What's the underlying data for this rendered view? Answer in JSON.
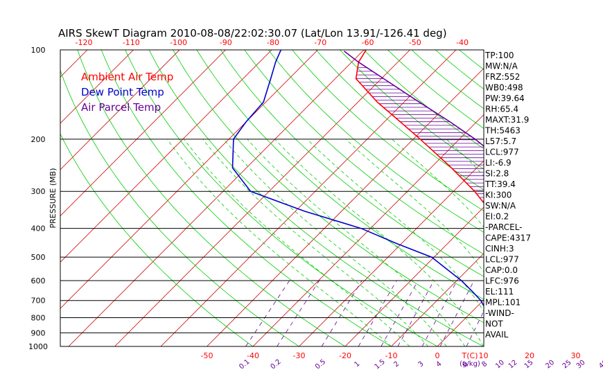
{
  "chart_data": {
    "type": "line",
    "title": "AIRS SkewT Diagram 2010-08-08/22:02:30.07 (Lat/Lon 13.91/-126.41 deg)",
    "ylabel": "PRESSURE (MB)",
    "y_scale": "log",
    "ylim": [
      1000,
      100
    ],
    "xlim_bottom_temp_c": [
      -50,
      40
    ],
    "pressure_ticks": [
      "100",
      "200",
      "300",
      "400",
      "500",
      "600",
      "700",
      "800",
      "900",
      "1000"
    ],
    "top_temp_ticks": [
      "-120",
      "-110",
      "-100",
      "-90",
      "-80",
      "-70",
      "-60",
      "-50",
      "-40"
    ],
    "bottom_temp_ticks": [
      "-50",
      "-40",
      "-30",
      "-20",
      "-10",
      "0",
      "10",
      "20",
      "30"
    ],
    "bottom_axis_unit": "T(C)",
    "mixing_ratio_ticks": [
      "0.1",
      "0.2",
      "0.5",
      "1",
      "1.5",
      "2",
      "3",
      "4",
      "6",
      "8",
      "10",
      "12",
      "15",
      "20",
      "25",
      "30",
      "40"
    ],
    "mixing_ratio_unit": "(g/kg)",
    "legend": [
      "Ambient Air Temp",
      "Dew Point Temp",
      "Air Parcel Temp"
    ],
    "colors": {
      "ambient": "#ff0000",
      "dewpoint": "#0000cc",
      "parcel": "#660099",
      "isotherm": "#cc0000",
      "dry_adiabat": "#00cc00",
      "moist_adiabat": "#00cc00",
      "mixing_ratio": "#660099"
    },
    "series": [
      {
        "name": "Ambient Air Temp",
        "points": [
          [
            1000,
            28.2
          ],
          [
            975,
            27.5
          ],
          [
            950,
            25.6
          ],
          [
            925,
            23.3
          ],
          [
            900,
            21.8
          ],
          [
            850,
            19.2
          ],
          [
            800,
            17.0
          ],
          [
            750,
            14.5
          ],
          [
            700,
            11.8
          ],
          [
            650,
            8.8
          ],
          [
            600,
            5.6
          ],
          [
            550,
            2.0
          ],
          [
            500,
            -1.8
          ],
          [
            450,
            -6.3
          ],
          [
            400,
            -11.5
          ],
          [
            350,
            -17.7
          ],
          [
            300,
            -25.4
          ],
          [
            250,
            -35.5
          ],
          [
            200,
            -48.5
          ],
          [
            175,
            -56.5
          ],
          [
            150,
            -65.8
          ],
          [
            125,
            -75.5
          ],
          [
            110,
            -78.5
          ],
          [
            100,
            -79.5
          ]
        ]
      },
      {
        "name": "Dew Point Temp",
        "points": [
          [
            1000,
            25.5
          ],
          [
            975,
            23.5
          ],
          [
            950,
            21.0
          ],
          [
            925,
            19.2
          ],
          [
            900,
            17.5
          ],
          [
            850,
            12.5
          ],
          [
            800,
            7.0
          ],
          [
            750,
            2.5
          ],
          [
            700,
            -0.5
          ],
          [
            650,
            -4.5
          ],
          [
            600,
            -9.0
          ],
          [
            550,
            -14.5
          ],
          [
            500,
            -20.5
          ],
          [
            450,
            -31.0
          ],
          [
            400,
            -42.0
          ],
          [
            350,
            -58.0
          ],
          [
            300,
            -74.0
          ],
          [
            250,
            -83.0
          ],
          [
            200,
            -89.0
          ],
          [
            175,
            -90.0
          ],
          [
            150,
            -90.5
          ],
          [
            125,
            -94.0
          ],
          [
            110,
            -96.5
          ],
          [
            100,
            -98.0
          ]
        ]
      },
      {
        "name": "Air Parcel Temp",
        "points": [
          [
            1000,
            28.5
          ],
          [
            975,
            27.8
          ],
          [
            950,
            27.0
          ],
          [
            900,
            25.6
          ],
          [
            850,
            24.1
          ],
          [
            800,
            22.6
          ],
          [
            750,
            21.0
          ],
          [
            700,
            19.1
          ],
          [
            650,
            17.0
          ],
          [
            600,
            14.6
          ],
          [
            550,
            11.9
          ],
          [
            500,
            8.7
          ],
          [
            450,
            5.0
          ],
          [
            400,
            0.4
          ],
          [
            350,
            -5.3
          ],
          [
            300,
            -12.7
          ],
          [
            250,
            -22.6
          ],
          [
            200,
            -36.6
          ],
          [
            175,
            -45.7
          ],
          [
            150,
            -56.7
          ],
          [
            125,
            -69.5
          ],
          [
            110,
            -78.5
          ],
          [
            101,
            -84.0
          ]
        ]
      }
    ],
    "indices": [
      "TP:100",
      "MW:N/A",
      "FRZ:552",
      "WB0:498",
      "PW:39.64",
      "RH:65.4",
      "MAXT:31.9",
      "TH:5463",
      "L57:5.7",
      "LCL:977",
      "LI:-6.9",
      "SI:2.8",
      "TT:39.4",
      "KI:300",
      "SW:N/A",
      "EI:0.2",
      "-PARCEL-",
      "CAPE:4317",
      "CINH:3",
      "LCL:977",
      "CAP:0.0",
      "LFC:976",
      "EL:111",
      "MPL:101",
      "-WIND-",
      "NOT",
      "AVAIL"
    ]
  }
}
